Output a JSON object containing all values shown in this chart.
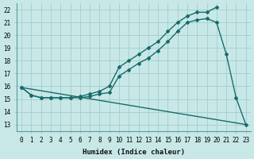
{
  "title": "",
  "xlabel": "Humidex (Indice chaleur)",
  "ylabel": "",
  "bg_color": "#c8e8e8",
  "grid_color": "#a8d0d0",
  "line_color": "#1a6b6b",
  "xlim": [
    -0.5,
    23.5
  ],
  "ylim": [
    12.5,
    22.5
  ],
  "xticks": [
    0,
    1,
    2,
    3,
    4,
    5,
    6,
    7,
    8,
    9,
    10,
    11,
    12,
    13,
    14,
    15,
    16,
    17,
    18,
    19,
    20,
    21,
    22,
    23
  ],
  "yticks": [
    13,
    14,
    15,
    16,
    17,
    18,
    19,
    20,
    21,
    22
  ],
  "line1_x": [
    0,
    1,
    2,
    3,
    4,
    5,
    6,
    7,
    8,
    9,
    10,
    11,
    12,
    13,
    14,
    15,
    16,
    17,
    18,
    19,
    20,
    21,
    22,
    23
  ],
  "line1_y": [
    15.9,
    15.3,
    15.1,
    15.1,
    15.1,
    15.1,
    15.1,
    15.2,
    15.4,
    15.5,
    16.8,
    17.3,
    17.8,
    18.2,
    18.8,
    19.5,
    20.3,
    21.0,
    21.2,
    21.3,
    21.0,
    18.5,
    15.1,
    13.0
  ],
  "line2_x": [
    0,
    1,
    2,
    3,
    4,
    5,
    6,
    7,
    8,
    9,
    10,
    11,
    12,
    13,
    14,
    15,
    16,
    17,
    18,
    19,
    20
  ],
  "line2_y": [
    15.9,
    15.3,
    15.1,
    15.1,
    15.1,
    15.1,
    15.2,
    15.4,
    15.6,
    16.0,
    17.5,
    18.0,
    18.5,
    19.0,
    19.5,
    20.3,
    21.0,
    21.5,
    21.8,
    21.8,
    22.2
  ],
  "line3_x": [
    0,
    23
  ],
  "line3_y": [
    15.9,
    13.0
  ]
}
